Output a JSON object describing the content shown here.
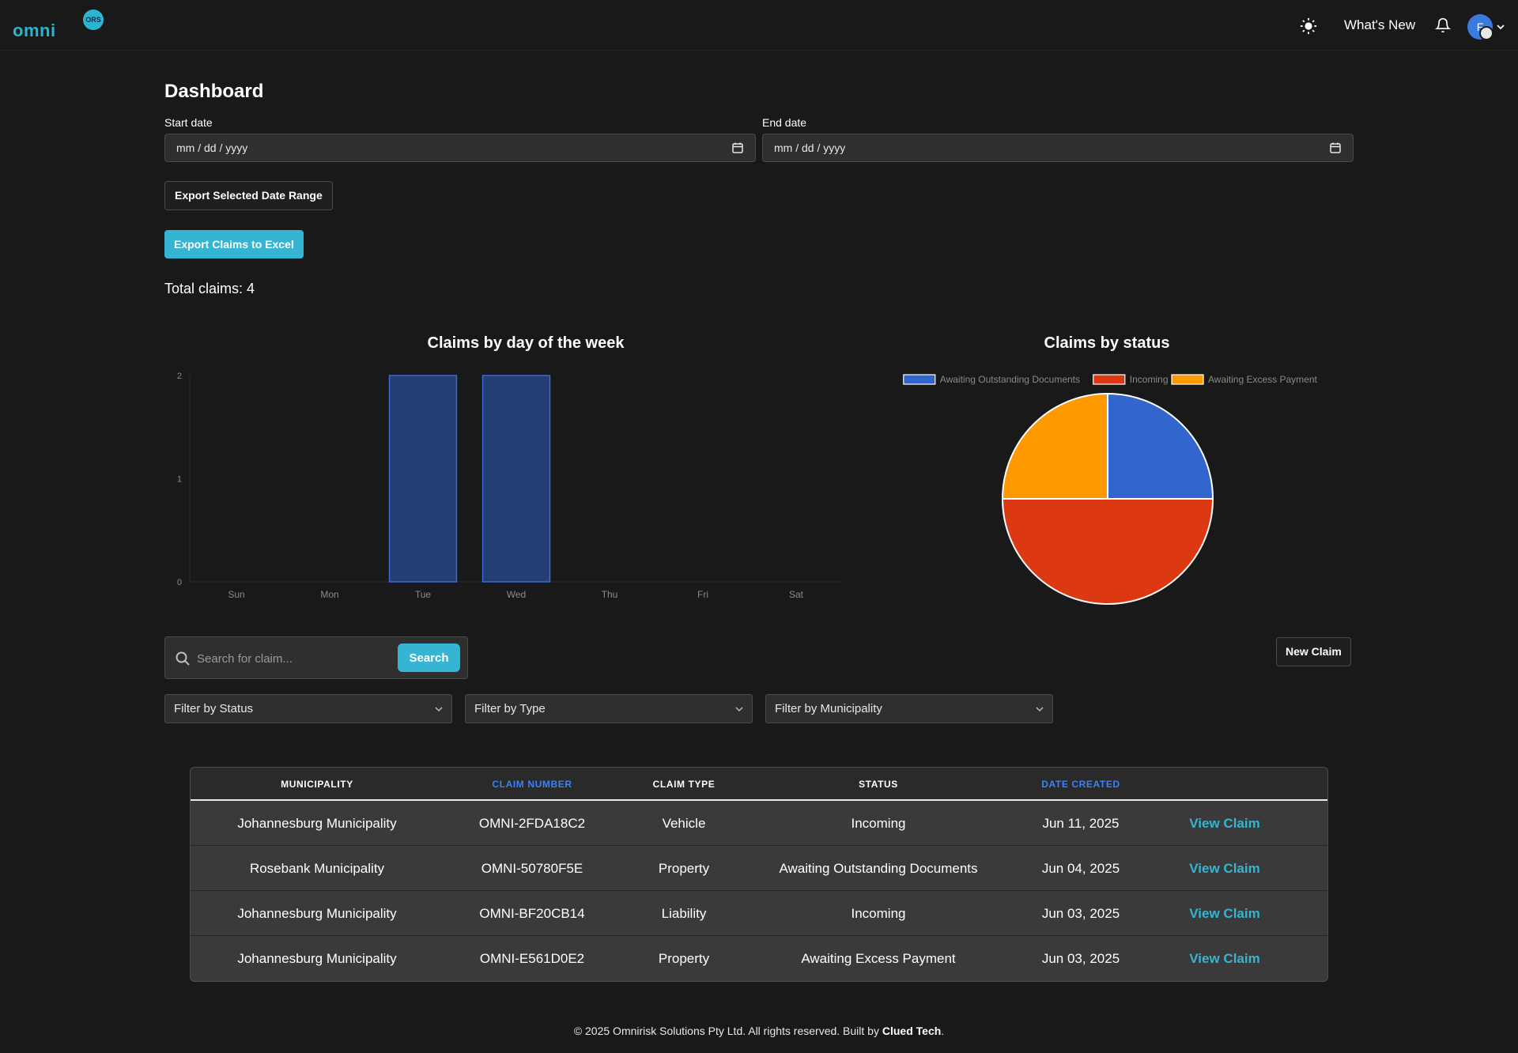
{
  "header": {
    "logo_text": "omni",
    "logo_badge": "ORS",
    "whats_new": "What's New",
    "avatar_initial": "F"
  },
  "page": {
    "title": "Dashboard",
    "start_date_label": "Start date",
    "end_date_label": "End date",
    "date_placeholder": "mm / dd / yyyy",
    "export_range_label": "Export Selected Date Range",
    "export_excel_label": "Export Claims to Excel",
    "total_claims": "Total claims: 4"
  },
  "chart_data": [
    {
      "type": "bar",
      "title": "Claims by day of the week",
      "categories": [
        "Sun",
        "Mon",
        "Tue",
        "Wed",
        "Thu",
        "Fri",
        "Sat"
      ],
      "values": [
        0,
        0,
        2,
        2,
        0,
        0,
        0
      ],
      "ylim": [
        0,
        2
      ],
      "yticks": [
        "0",
        "1",
        "2"
      ],
      "xlabel": "",
      "ylabel": "",
      "color": "#243d73",
      "border_color": "#3a6ad4"
    },
    {
      "type": "pie",
      "title": "Claims by status",
      "labels": [
        "Awaiting Outstanding Documents",
        "Incoming",
        "Awaiting Excess Payment"
      ],
      "values": [
        1,
        2,
        1
      ],
      "colors": [
        "#3366cc",
        "#dc3912",
        "#ff9900"
      ],
      "legend": "top"
    }
  ],
  "search": {
    "placeholder": "Search for claim...",
    "button_label": "Search"
  },
  "new_claim_label": "New Claim",
  "filters": {
    "status": "Filter by Status",
    "type": "Filter by Type",
    "municipality": "Filter by Municipality"
  },
  "table": {
    "headers": {
      "municipality": "MUNICIPALITY",
      "claim_number": "CLAIM NUMBER",
      "claim_type": "CLAIM TYPE",
      "status": "STATUS",
      "date_created": "DATE CREATED"
    },
    "rows": [
      {
        "municipality": "Johannesburg Municipality",
        "claim_number": "OMNI-2FDA18C2",
        "claim_type": "Vehicle",
        "status": "Incoming",
        "date": "Jun 11, 2025",
        "action": "View Claim"
      },
      {
        "municipality": "Rosebank Municipality",
        "claim_number": "OMNI-50780F5E",
        "claim_type": "Property",
        "status": "Awaiting Outstanding Documents",
        "date": "Jun 04, 2025",
        "action": "View Claim"
      },
      {
        "municipality": "Johannesburg Municipality",
        "claim_number": "OMNI-BF20CB14",
        "claim_type": "Liability",
        "status": "Incoming",
        "date": "Jun 03, 2025",
        "action": "View Claim"
      },
      {
        "municipality": "Johannesburg Municipality",
        "claim_number": "OMNI-E561D0E2",
        "claim_type": "Property",
        "status": "Awaiting Excess Payment",
        "date": "Jun 03, 2025",
        "action": "View Claim"
      }
    ]
  },
  "footer": {
    "text": "© 2025 Omnirisk Solutions Pty Ltd. All rights reserved. Built by",
    "builder": "Clued Tech",
    "suffix": "."
  }
}
